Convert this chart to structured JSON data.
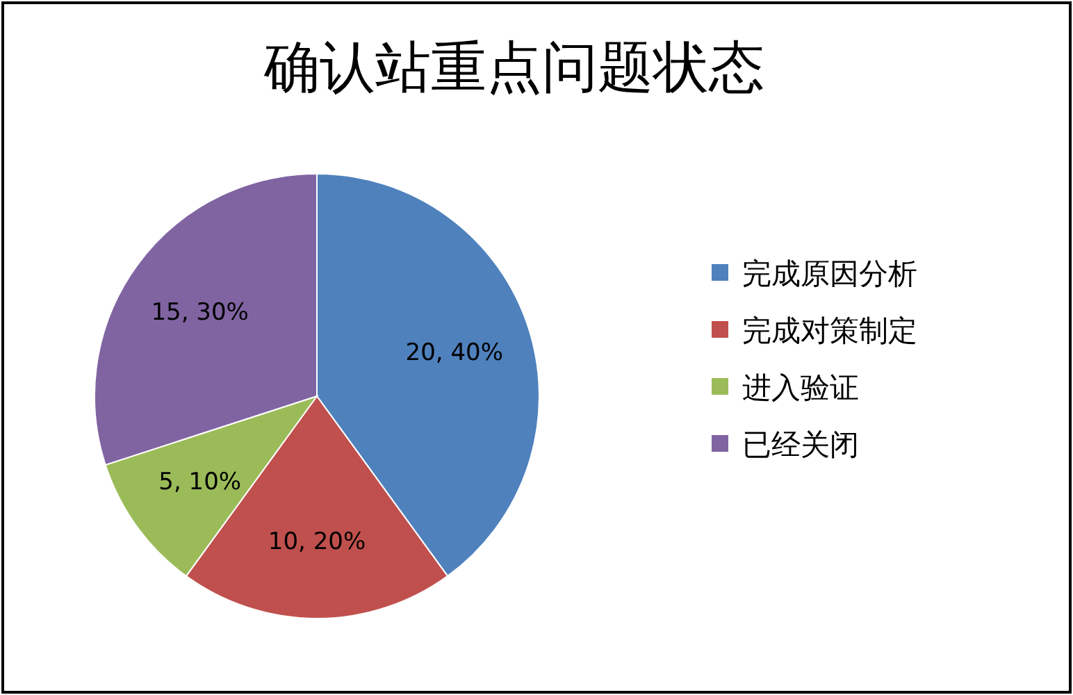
{
  "chart_data": {
    "type": "pie",
    "title": "确认站重点问题状态",
    "categories": [
      "完成原因分析",
      "完成对策制定",
      "进入验证",
      "已经关闭"
    ],
    "values": [
      20,
      10,
      5,
      15
    ],
    "colors": [
      "#4f81bd",
      "#c0504d",
      "#9bbb59",
      "#8064a2"
    ],
    "value_labels": [
      "20, 40%",
      "10, 20%",
      "5, 10%",
      "15, 30%"
    ],
    "legend": "right"
  }
}
